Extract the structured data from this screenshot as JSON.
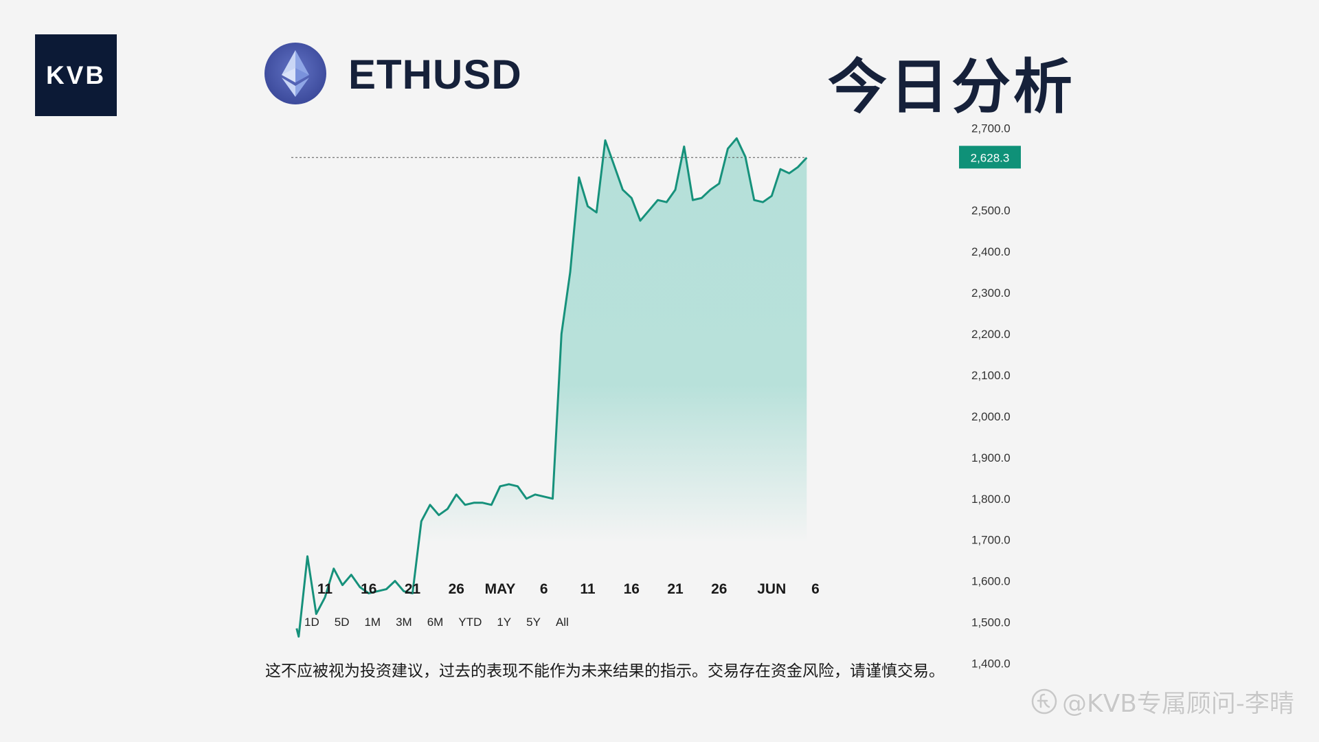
{
  "brand": {
    "logo_text": "KVB"
  },
  "header": {
    "symbol": "ETHUSD",
    "title": "今日分析"
  },
  "icons": {
    "logo": "ethereum-icon",
    "watermark": "zhihu-icon"
  },
  "colors": {
    "line": "#16917b",
    "fill": "#b5e0d9",
    "badge": "#0f9178",
    "navy": "#0c1a36"
  },
  "chart_data": {
    "type": "area",
    "title": "",
    "xlabel": "",
    "ylabel": "",
    "ylim": [
      1400,
      2700
    ],
    "y_ticks": [
      "2,700.0",
      "2,500.0",
      "2,400.0",
      "2,300.0",
      "2,200.0",
      "2,100.0",
      "2,000.0",
      "1,900.0",
      "1,800.0",
      "1,700.0",
      "1,600.0",
      "1,500.0",
      "1,400.0"
    ],
    "y_tick_values": [
      2700,
      2500,
      2400,
      2300,
      2200,
      2100,
      2000,
      1900,
      1800,
      1700,
      1600,
      1500,
      1400
    ],
    "x_ticks": [
      "11",
      "16",
      "21",
      "26",
      "MAY",
      "6",
      "11",
      "16",
      "21",
      "26",
      "JUN",
      "6"
    ],
    "x_tick_dates": [
      "2023-04-11",
      "2023-04-16",
      "2023-04-21",
      "2023-04-26",
      "2023-05-01",
      "2023-05-06",
      "2023-05-11",
      "2023-05-16",
      "2023-05-21",
      "2023-05-26",
      "2023-06-01",
      "2023-06-06"
    ],
    "last_price": {
      "value": 2628.3,
      "label": "2,628.3"
    },
    "grid": false,
    "series": [
      {
        "x": [
          "2023-04-08",
          "2023-04-08",
          "2023-04-09",
          "2023-04-10",
          "2023-04-11",
          "2023-04-12",
          "2023-04-13",
          "2023-04-14",
          "2023-04-15",
          "2023-04-16",
          "2023-04-17",
          "2023-04-18",
          "2023-04-19",
          "2023-04-20",
          "2023-04-21",
          "2023-04-22",
          "2023-04-23",
          "2023-04-24",
          "2023-04-25",
          "2023-04-26",
          "2023-04-27",
          "2023-04-28",
          "2023-04-29",
          "2023-04-30",
          "2023-05-01",
          "2023-05-02",
          "2023-05-03",
          "2023-05-04",
          "2023-05-05",
          "2023-05-06",
          "2023-05-07",
          "2023-05-08",
          "2023-05-09",
          "2023-05-10",
          "2023-05-11",
          "2023-05-12",
          "2023-05-13",
          "2023-05-14",
          "2023-05-15",
          "2023-05-16",
          "2023-05-17",
          "2023-05-18",
          "2023-05-19",
          "2023-05-20",
          "2023-05-21",
          "2023-05-22",
          "2023-05-23",
          "2023-05-24",
          "2023-05-25",
          "2023-05-26",
          "2023-05-27",
          "2023-05-28",
          "2023-05-29",
          "2023-05-30",
          "2023-05-31",
          "2023-06-01",
          "2023-06-02",
          "2023-06-03",
          "2023-06-04",
          "2023-06-05"
        ],
        "values": [
          1485,
          1465,
          1660,
          1520,
          1560,
          1630,
          1590,
          1615,
          1585,
          1570,
          1575,
          1580,
          1600,
          1575,
          1570,
          1745,
          1785,
          1760,
          1775,
          1810,
          1785,
          1790,
          1790,
          1785,
          1830,
          1835,
          1830,
          1800,
          1810,
          1805,
          1800,
          2200,
          2350,
          2580,
          2510,
          2495,
          2670,
          2610,
          2550,
          2530,
          2475,
          2500,
          2525,
          2520,
          2550,
          2655,
          2525,
          2530,
          2550,
          2565,
          2650,
          2675,
          2630,
          2525,
          2520,
          2535,
          2600,
          2590,
          2605,
          2628
        ]
      }
    ]
  },
  "range_selector": [
    "1D",
    "5D",
    "1M",
    "3M",
    "6M",
    "YTD",
    "1Y",
    "5Y",
    "All"
  ],
  "disclaimer": "这不应被视为投资建议，过去的表现不能作为未来结果的指示。交易存在资金风险，请谨慎交易。",
  "watermark": "@KVB专属顾问-李晴"
}
